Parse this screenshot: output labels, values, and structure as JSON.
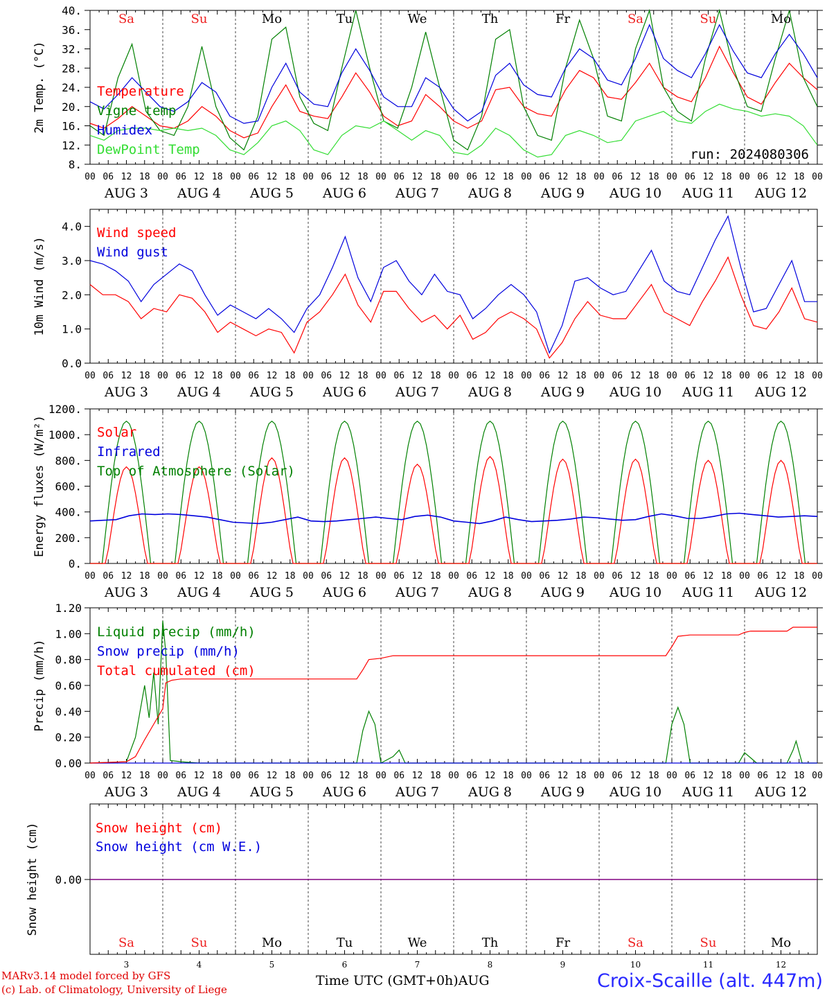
{
  "colors": {
    "red": "#ff0000",
    "blue": "#0000dd",
    "green": "#008000",
    "lightgreen": "#33dd33",
    "purple": "#800080",
    "weekend": "#ee2222",
    "weekday": "#000000"
  },
  "footer": {
    "model": "MARv3.14 model forced by GFS",
    "lab": "(c) Lab. of Climatology, University of Liege",
    "time_label": "Time UTC (GMT+0h)",
    "month": "AUG",
    "station": "Croix-Scaille (alt. 447m)"
  },
  "chart_data": [
    {
      "type": "line",
      "ylabel": "2m Temp. (°C)",
      "ylim": [
        8,
        40
      ],
      "yticks": [
        "8.",
        "12.",
        "16.",
        "20.",
        "24.",
        "28.",
        "32.",
        "36.",
        "40."
      ],
      "day_labels": [
        "Sa",
        "Su",
        "Mo",
        "Tu",
        "We",
        "Th",
        "Fr",
        "Sa",
        "Su",
        "Mo"
      ],
      "date_labels": [
        "AUG  3",
        "AUG  4",
        "AUG  5",
        "AUG  6",
        "AUG  7",
        "AUG  8",
        "AUG  9",
        "AUG 10",
        "AUG 11",
        "AUG 12"
      ],
      "hour_ticks": [
        "00",
        "06",
        "12",
        "18"
      ],
      "run_label": "run: 2024080306",
      "series": [
        {
          "name": "Temperature",
          "color": "#ff0000",
          "values": [
            16.5,
            15.5,
            17.5,
            20.0,
            18.0,
            16.0,
            15.5,
            17.0,
            20.0,
            18.0,
            15.0,
            13.5,
            14.5,
            20.0,
            24.5,
            19.0,
            18.0,
            17.5,
            22.0,
            27.0,
            23.0,
            18.0,
            16.0,
            17.0,
            22.5,
            20.0,
            17.0,
            15.5,
            17.0,
            23.5,
            24.0,
            20.0,
            18.5,
            18.0,
            23.5,
            27.5,
            26.0,
            22.0,
            21.5,
            25.0,
            29.0,
            24.0,
            22.0,
            21.0,
            26.0,
            32.5,
            27.0,
            22.0,
            20.5,
            25.0,
            29.0,
            26.0,
            23.5
          ]
        },
        {
          "name": "Vigne temp",
          "color": "#008000",
          "values": [
            16.0,
            14.0,
            26.0,
            33.0,
            19.0,
            15.0,
            14.0,
            20.0,
            32.5,
            20.0,
            13.5,
            11.0,
            18.0,
            34.0,
            36.5,
            22.0,
            16.5,
            15.0,
            28.0,
            40.0,
            28.0,
            17.0,
            15.5,
            24.0,
            35.5,
            24.0,
            13.0,
            11.0,
            18.0,
            34.0,
            36.0,
            20.0,
            14.0,
            13.0,
            28.0,
            38.0,
            30.0,
            18.0,
            17.0,
            32.0,
            40.0,
            24.0,
            19.0,
            17.0,
            30.0,
            40.0,
            28.0,
            20.0,
            19.0,
            30.0,
            40.0,
            26.0,
            20.0
          ]
        },
        {
          "name": "Humidex",
          "color": "#0000dd",
          "values": [
            21.0,
            19.5,
            22.5,
            26.0,
            23.0,
            20.0,
            19.0,
            21.0,
            25.0,
            23.0,
            18.0,
            16.5,
            17.0,
            24.0,
            29.0,
            23.0,
            20.5,
            20.0,
            27.0,
            32.0,
            27.5,
            22.0,
            20.0,
            20.0,
            26.0,
            24.0,
            19.5,
            17.0,
            19.0,
            26.5,
            29.0,
            24.5,
            22.5,
            22.0,
            28.0,
            32.0,
            30.0,
            25.5,
            24.5,
            30.0,
            37.0,
            30.0,
            27.5,
            26.0,
            31.0,
            37.0,
            31.5,
            27.0,
            26.0,
            31.0,
            35.0,
            31.0,
            26.0
          ]
        },
        {
          "name": "DewPoint Temp",
          "color": "#33dd33",
          "values": [
            14.0,
            13.0,
            15.0,
            15.5,
            15.5,
            15.0,
            15.5,
            15.0,
            15.5,
            14.0,
            11.0,
            10.0,
            12.5,
            16.0,
            17.0,
            15.0,
            11.0,
            10.0,
            14.0,
            16.0,
            15.5,
            17.0,
            15.0,
            13.0,
            15.0,
            14.0,
            10.5,
            10.0,
            12.0,
            15.5,
            14.0,
            11.0,
            9.5,
            10.0,
            14.0,
            15.0,
            14.0,
            12.5,
            13.0,
            17.0,
            18.0,
            19.0,
            17.0,
            16.5,
            19.0,
            20.5,
            19.5,
            19.0,
            18.0,
            18.5,
            18.0,
            16.0,
            12.0
          ]
        }
      ]
    },
    {
      "type": "line",
      "ylabel": "10m Wind (m/s)",
      "ylim": [
        0,
        4.5
      ],
      "yticks": [
        "0.0",
        "1.0",
        "2.0",
        "3.0",
        "4.0"
      ],
      "date_labels": [
        "AUG  3",
        "AUG  4",
        "AUG  5",
        "AUG  6",
        "AUG  7",
        "AUG  8",
        "AUG  9",
        "AUG 10",
        "AUG 11",
        "AUG 12"
      ],
      "hour_ticks": [
        "00",
        "06",
        "12",
        "18"
      ],
      "series": [
        {
          "name": "Wind speed",
          "color": "#ff0000",
          "values": [
            2.3,
            2.0,
            2.0,
            1.8,
            1.3,
            1.6,
            1.5,
            2.0,
            1.9,
            1.5,
            0.9,
            1.2,
            1.0,
            0.8,
            1.0,
            0.9,
            0.3,
            1.2,
            1.5,
            2.0,
            2.6,
            1.7,
            1.2,
            2.1,
            2.1,
            1.6,
            1.2,
            1.4,
            1.0,
            1.4,
            0.7,
            0.9,
            1.3,
            1.5,
            1.3,
            1.0,
            0.15,
            0.6,
            1.3,
            1.8,
            1.4,
            1.3,
            1.3,
            1.8,
            2.3,
            1.5,
            1.3,
            1.1,
            1.8,
            2.4,
            3.1,
            2.0,
            1.1,
            1.0,
            1.5,
            2.2,
            1.3,
            1.2
          ]
        },
        {
          "name": "Wind gust",
          "color": "#0000dd",
          "values": [
            3.0,
            2.9,
            2.7,
            2.4,
            1.8,
            2.3,
            2.6,
            2.9,
            2.7,
            2.0,
            1.4,
            1.7,
            1.5,
            1.3,
            1.6,
            1.3,
            0.9,
            1.6,
            2.0,
            2.8,
            3.7,
            2.5,
            1.8,
            2.8,
            3.0,
            2.4,
            2.0,
            2.6,
            2.1,
            2.0,
            1.3,
            1.6,
            2.0,
            2.3,
            2.0,
            1.5,
            0.3,
            1.1,
            2.4,
            2.5,
            2.2,
            2.0,
            2.1,
            2.7,
            3.3,
            2.4,
            2.1,
            2.0,
            2.8,
            3.6,
            4.3,
            2.8,
            1.5,
            1.6,
            2.3,
            3.0,
            1.8,
            1.8
          ]
        }
      ]
    },
    {
      "type": "line",
      "ylabel": "Energy fluxes (W/m²)",
      "ylim": [
        0,
        1200
      ],
      "yticks": [
        "0.",
        "200.",
        "400.",
        "600.",
        "800.",
        "1000.",
        "1200."
      ],
      "date_labels": [
        "AUG  3",
        "AUG  4",
        "AUG  5",
        "AUG  6",
        "AUG  7",
        "AUG  8",
        "AUG  9",
        "AUG 10",
        "AUG 11",
        "AUG 12"
      ],
      "hour_ticks": [
        "00",
        "06",
        "12",
        "18"
      ],
      "series": [
        {
          "name": "Solar",
          "color": "#ff0000",
          "peaks": [
            750,
            750,
            820,
            820,
            770,
            830,
            810,
            810,
            800,
            800
          ]
        },
        {
          "name": "Infrared",
          "color": "#0000dd",
          "values": [
            330,
            335,
            340,
            370,
            385,
            380,
            385,
            380,
            370,
            360,
            340,
            320,
            315,
            310,
            320,
            340,
            360,
            330,
            325,
            330,
            340,
            350,
            360,
            350,
            340,
            365,
            375,
            360,
            330,
            320,
            310,
            330,
            360,
            340,
            325,
            330,
            335,
            345,
            360,
            355,
            345,
            335,
            340,
            365,
            385,
            370,
            350,
            350,
            365,
            385,
            390,
            380,
            370,
            360,
            365,
            370,
            365
          ]
        },
        {
          "name": "Top of Atmosphere (Solar)",
          "color": "#008000",
          "peak": 1105
        }
      ]
    },
    {
      "type": "line",
      "ylabel": "Precip (mm/h)",
      "ylim": [
        0,
        1.2
      ],
      "yticks": [
        "0.00",
        "0.20",
        "0.40",
        "0.60",
        "0.80",
        "1.00",
        "1.20"
      ],
      "date_labels": [
        "AUG  3",
        "AUG  4",
        "AUG  5",
        "AUG  6",
        "AUG  7",
        "AUG  8",
        "AUG  9",
        "AUG 10",
        "AUG 11",
        "AUG 12"
      ],
      "hour_ticks": [
        "00",
        "06",
        "12",
        "18"
      ],
      "series": [
        {
          "name": "Liquid precip (mm/h)",
          "color": "#008000",
          "points": [
            [
              0,
              0
            ],
            [
              12,
              0.01
            ],
            [
              15,
              0.2
            ],
            [
              18,
              0.6
            ],
            [
              19.5,
              0.35
            ],
            [
              21,
              0.7
            ],
            [
              22.5,
              0.3
            ],
            [
              24,
              1.1
            ],
            [
              25,
              0.85
            ],
            [
              26.5,
              0.02
            ],
            [
              30,
              0.01
            ],
            [
              36,
              0
            ],
            [
              88,
              0
            ],
            [
              90,
              0.25
            ],
            [
              92,
              0.4
            ],
            [
              94,
              0.3
            ],
            [
              96,
              0
            ],
            [
              100,
              0.05
            ],
            [
              102,
              0.1
            ],
            [
              104,
              0
            ],
            [
              190,
              0
            ],
            [
              192,
              0.3
            ],
            [
              194,
              0.43
            ],
            [
              196,
              0.3
            ],
            [
              198,
              0
            ],
            [
              214,
              0
            ],
            [
              216,
              0.08
            ],
            [
              218,
              0.04
            ],
            [
              220,
              0
            ],
            [
              230,
              0
            ],
            [
              232,
              0.1
            ],
            [
              233,
              0.17
            ],
            [
              235,
              0
            ],
            [
              240,
              0
            ]
          ]
        },
        {
          "name": "Snow precip (mm/h)",
          "color": "#0000dd",
          "points": [
            [
              0,
              0
            ],
            [
              240,
              0
            ]
          ]
        },
        {
          "name": "Total cumulated (cm)",
          "color": "#ff0000",
          "points": [
            [
              0,
              0
            ],
            [
              12,
              0.01
            ],
            [
              15,
              0.05
            ],
            [
              18,
              0.18
            ],
            [
              21,
              0.3
            ],
            [
              24,
              0.42
            ],
            [
              25,
              0.62
            ],
            [
              27,
              0.64
            ],
            [
              30,
              0.65
            ],
            [
              88,
              0.65
            ],
            [
              90,
              0.72
            ],
            [
              92,
              0.8
            ],
            [
              96,
              0.81
            ],
            [
              100,
              0.83
            ],
            [
              190,
              0.83
            ],
            [
              192,
              0.9
            ],
            [
              194,
              0.98
            ],
            [
              198,
              0.99
            ],
            [
              214,
              0.99
            ],
            [
              216,
              1.01
            ],
            [
              218,
              1.02
            ],
            [
              230,
              1.02
            ],
            [
              232,
              1.05
            ],
            [
              240,
              1.05
            ]
          ]
        }
      ]
    },
    {
      "type": "line",
      "ylabel": "Snow height (cm)",
      "yticks": [
        "0.00"
      ],
      "day_labels": [
        "Sa",
        "Su",
        "Mo",
        "Tu",
        "We",
        "Th",
        "Fr",
        "Sa",
        "Su",
        "Mo"
      ],
      "day_numbers": [
        "3",
        "4",
        "5",
        "6",
        "7",
        "8",
        "9",
        "10",
        "11",
        "12"
      ],
      "series": [
        {
          "name": "Snow height (cm)",
          "color": "#ff0000",
          "values": [
            0,
            0
          ]
        },
        {
          "name": "Snow height (cm W.E.)",
          "color": "#0000dd",
          "values": [
            0,
            0
          ]
        }
      ]
    }
  ]
}
